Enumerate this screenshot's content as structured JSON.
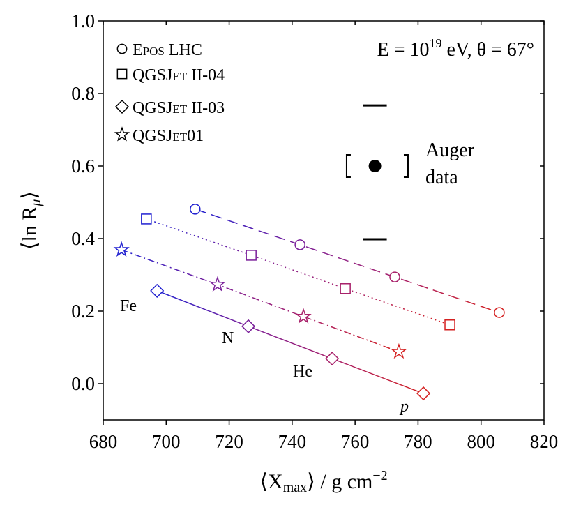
{
  "chart_data": {
    "type": "line",
    "xlabel": {
      "parts": [
        "⟨X",
        "max",
        "⟩ / g cm",
        "−2"
      ]
    },
    "ylabel": {
      "parts": [
        "⟨ln R",
        "μ",
        "⟩"
      ]
    },
    "condition": {
      "parts": [
        "E = 10",
        "19",
        " eV, θ = 67°"
      ]
    },
    "xlim": [
      680,
      820
    ],
    "ylim": [
      -0.1,
      1.0
    ],
    "xticks": [
      680,
      700,
      720,
      740,
      760,
      780,
      800,
      820
    ],
    "yticks": [
      {
        "value": 0.0,
        "label": "0.0"
      },
      {
        "value": 0.2,
        "label": "0.2"
      },
      {
        "value": 0.4,
        "label": "0.4"
      },
      {
        "value": 0.6,
        "label": "0.6"
      },
      {
        "value": 0.8,
        "label": "0.8"
      },
      {
        "value": 1.0,
        "label": "1.0"
      }
    ],
    "mass_colors": [
      "#2020d0",
      "#7a1f9a",
      "#a8206a",
      "#d42020"
    ],
    "annotations": [
      "Fe",
      "N",
      "He",
      "p"
    ],
    "series": [
      {
        "name": "Epos LHC",
        "marker": "circle",
        "dash": "16 8",
        "x": [
          709.2,
          742.5,
          772.6,
          805.8
        ],
        "values": [
          0.481,
          0.383,
          0.294,
          0.196
        ]
      },
      {
        "name": "QGSJet II-04",
        "marker": "square",
        "dash": "2 4",
        "x": [
          693.7,
          727.0,
          756.9,
          790.1
        ],
        "values": [
          0.454,
          0.354,
          0.262,
          0.162
        ]
      },
      {
        "name": "QGSJet II-03",
        "marker": "diamond",
        "dash": "none",
        "x": [
          697.1,
          726.1,
          752.7,
          781.7
        ],
        "values": [
          0.256,
          0.158,
          0.069,
          -0.027
        ]
      },
      {
        "name": "QGSJet01",
        "marker": "star",
        "dash": "10 4 2 4",
        "x": [
          685.8,
          716.3,
          743.6,
          773.9
        ],
        "values": [
          0.369,
          0.273,
          0.185,
          0.088
        ]
      }
    ],
    "auger": {
      "label": [
        "Auger",
        "data"
      ],
      "x": 766.3,
      "value": 0.6,
      "y_sys": [
        0.398,
        0.767
      ],
      "x_sys": [
        757.3,
        776.8
      ]
    }
  }
}
